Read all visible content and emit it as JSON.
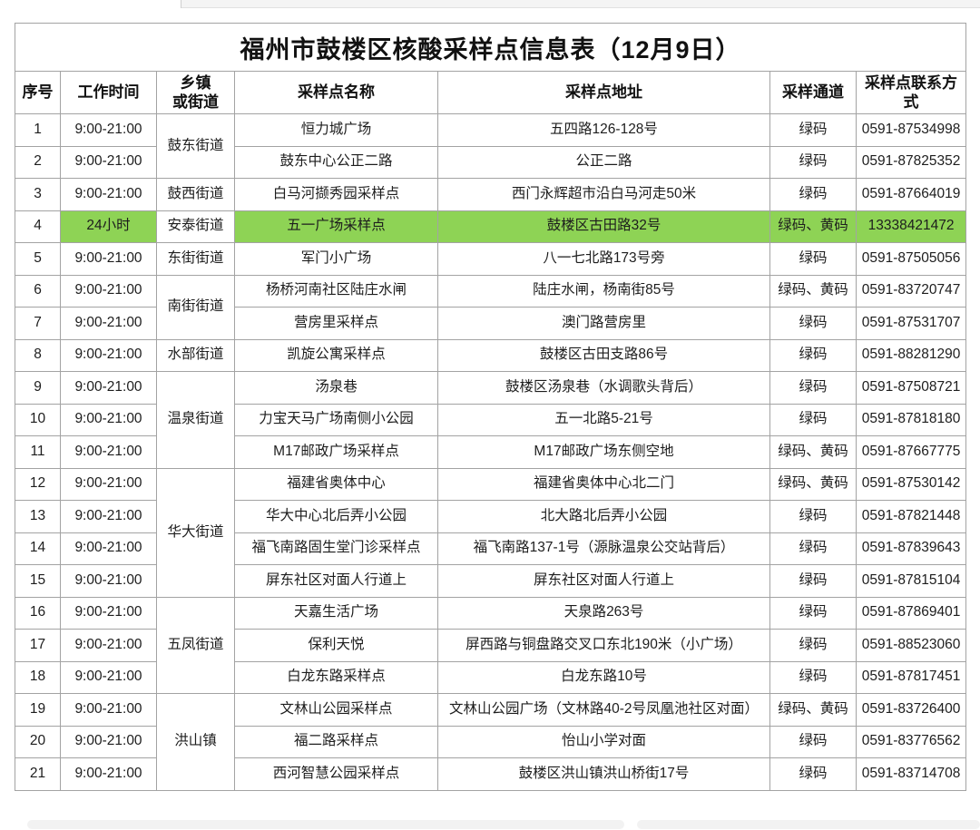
{
  "page_title": "福州市鼓楼区核酸采样点信息表（12月9日）",
  "highlight_color": "#8ed355",
  "table": {
    "headers": [
      "序号",
      "工作时间",
      "乡镇\n或街道",
      "采样点名称",
      "采样点地址",
      "采样通道",
      "采样点联系方式"
    ],
    "rows": [
      {
        "no": "1",
        "time": "9:00-21:00",
        "street": "鼓东街道",
        "street_span": 2,
        "name": "恒力城广场",
        "address": "五四路126-128号",
        "channel": "绿码",
        "contact": "0591-87534998",
        "highlight": false
      },
      {
        "no": "2",
        "time": "9:00-21:00",
        "name": "鼓东中心公正二路",
        "address": "公正二路",
        "channel": "绿码",
        "contact": "0591-87825352",
        "highlight": false
      },
      {
        "no": "3",
        "time": "9:00-21:00",
        "street": "鼓西街道",
        "street_span": 1,
        "name": "白马河撷秀园采样点",
        "address": "西门永辉超市沿白马河走50米",
        "channel": "绿码",
        "contact": "0591-87664019",
        "highlight": false
      },
      {
        "no": "4",
        "time": "24小时",
        "street": "安泰街道",
        "street_span": 1,
        "name": "五一广场采样点",
        "address": "鼓楼区古田路32号",
        "channel": "绿码、黄码",
        "contact": "13338421472",
        "highlight": true
      },
      {
        "no": "5",
        "time": "9:00-21:00",
        "street": "东街街道",
        "street_span": 1,
        "name": "军门小广场",
        "address": "八一七北路173号旁",
        "channel": "绿码",
        "contact": "0591-87505056",
        "highlight": false
      },
      {
        "no": "6",
        "time": "9:00-21:00",
        "street": "南街街道",
        "street_span": 2,
        "name": "杨桥河南社区陆庄水闸",
        "address": "陆庄水闸，杨南街85号",
        "channel": "绿码、黄码",
        "contact": "0591-83720747",
        "highlight": false
      },
      {
        "no": "7",
        "time": "9:00-21:00",
        "name": "营房里采样点",
        "address": "澳门路营房里",
        "channel": "绿码",
        "contact": "0591-87531707",
        "highlight": false
      },
      {
        "no": "8",
        "time": "9:00-21:00",
        "street": "水部街道",
        "street_span": 1,
        "name": "凯旋公寓采样点",
        "address": "鼓楼区古田支路86号",
        "channel": "绿码",
        "contact": "0591-88281290",
        "highlight": false
      },
      {
        "no": "9",
        "time": "9:00-21:00",
        "street": "温泉街道",
        "street_span": 3,
        "name": "汤泉巷",
        "address": "鼓楼区汤泉巷（水调歌头背后）",
        "channel": "绿码",
        "contact": "0591-87508721",
        "highlight": false
      },
      {
        "no": "10",
        "time": "9:00-21:00",
        "name": "力宝天马广场南侧小公园",
        "address": "五一北路5-21号",
        "channel": "绿码",
        "contact": "0591-87818180",
        "highlight": false
      },
      {
        "no": "11",
        "time": "9:00-21:00",
        "name": "M17邮政广场采样点",
        "address": "M17邮政广场东侧空地",
        "channel": "绿码、黄码",
        "contact": "0591-87667775",
        "highlight": false
      },
      {
        "no": "12",
        "time": "9:00-21:00",
        "street": "华大街道",
        "street_span": 4,
        "name": "福建省奥体中心",
        "address": "福建省奥体中心北二门",
        "channel": "绿码、黄码",
        "contact": "0591-87530142",
        "highlight": false
      },
      {
        "no": "13",
        "time": "9:00-21:00",
        "name": "华大中心北后弄小公园",
        "address": "北大路北后弄小公园",
        "channel": "绿码",
        "contact": "0591-87821448",
        "highlight": false
      },
      {
        "no": "14",
        "time": "9:00-21:00",
        "name": "福飞南路固生堂门诊采样点",
        "address": "福飞南路137-1号（源脉温泉公交站背后）",
        "channel": "绿码",
        "contact": "0591-87839643",
        "highlight": false
      },
      {
        "no": "15",
        "time": "9:00-21:00",
        "name": "屏东社区对面人行道上",
        "address": "屏东社区对面人行道上",
        "channel": "绿码",
        "contact": "0591-87815104",
        "highlight": false
      },
      {
        "no": "16",
        "time": "9:00-21:00",
        "street": "五凤街道",
        "street_span": 3,
        "name": "天嘉生活广场",
        "address": "天泉路263号",
        "channel": "绿码",
        "contact": "0591-87869401",
        "highlight": false
      },
      {
        "no": "17",
        "time": "9:00-21:00",
        "name": "保利天悦",
        "address": "屏西路与铜盘路交叉口东北190米（小广场）",
        "channel": "绿码",
        "contact": "0591-88523060",
        "highlight": false
      },
      {
        "no": "18",
        "time": "9:00-21:00",
        "name": "白龙东路采样点",
        "address": "白龙东路10号",
        "channel": "绿码",
        "contact": "0591-87817451",
        "highlight": false
      },
      {
        "no": "19",
        "time": "9:00-21:00",
        "street": "洪山镇",
        "street_span": 3,
        "name": "文林山公园采样点",
        "address": "文林山公园广场（文林路40-2号凤凰池社区对面）",
        "channel": "绿码、黄码",
        "contact": "0591-83726400",
        "highlight": false
      },
      {
        "no": "20",
        "time": "9:00-21:00",
        "name": "福二路采样点",
        "address": "怡山小学对面",
        "channel": "绿码",
        "contact": "0591-83776562",
        "highlight": false
      },
      {
        "no": "21",
        "time": "9:00-21:00",
        "name": "西河智慧公园采样点",
        "address": "鼓楼区洪山镇洪山桥街17号",
        "channel": "绿码",
        "contact": "0591-83714708",
        "highlight": false
      }
    ]
  }
}
